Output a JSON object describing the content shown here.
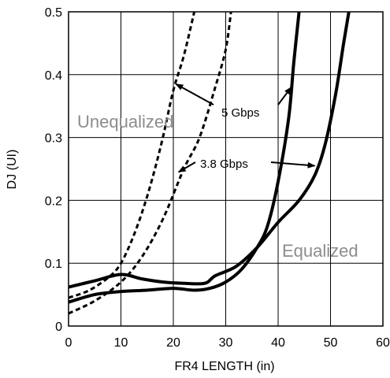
{
  "chart_data": {
    "type": "line",
    "title": "",
    "xlabel": "FR4 LENGTH (in)",
    "ylabel": "DJ (UI)",
    "xlim": [
      0,
      60
    ],
    "ylim": [
      0,
      0.5
    ],
    "x_ticks": [
      "0",
      "10",
      "20",
      "30",
      "40",
      "50",
      "60"
    ],
    "y_ticks": [
      "0",
      "0.1",
      "0.2",
      "0.3",
      "0.4",
      "0.5"
    ],
    "grid": true,
    "series": [
      {
        "group": "Unequalized",
        "rate": "5 Gbps",
        "style": "dashed",
        "points": [
          [
            0,
            0.045
          ],
          [
            4,
            0.057
          ],
          [
            8,
            0.08
          ],
          [
            10,
            0.1
          ],
          [
            12,
            0.135
          ],
          [
            14,
            0.18
          ],
          [
            16,
            0.235
          ],
          [
            18,
            0.3
          ],
          [
            20,
            0.375
          ],
          [
            22,
            0.43
          ],
          [
            24,
            0.5
          ]
        ]
      },
      {
        "group": "Unequalized",
        "rate": "3.8 Gbps",
        "style": "dashed",
        "points": [
          [
            0,
            0.02
          ],
          [
            5,
            0.04
          ],
          [
            10,
            0.07
          ],
          [
            14,
            0.11
          ],
          [
            18,
            0.17
          ],
          [
            22,
            0.25
          ],
          [
            25,
            0.3
          ],
          [
            28,
            0.38
          ],
          [
            30,
            0.44
          ],
          [
            31,
            0.5
          ]
        ]
      },
      {
        "group": "Equalized",
        "rate": "5 Gbps",
        "style": "solid",
        "points": [
          [
            0,
            0.038
          ],
          [
            5,
            0.05
          ],
          [
            10,
            0.055
          ],
          [
            15,
            0.057
          ],
          [
            20,
            0.06
          ],
          [
            24,
            0.057
          ],
          [
            27,
            0.06
          ],
          [
            30,
            0.07
          ],
          [
            33,
            0.09
          ],
          [
            36,
            0.125
          ],
          [
            38,
            0.16
          ],
          [
            40,
            0.23
          ],
          [
            42,
            0.33
          ],
          [
            43,
            0.42
          ],
          [
            44,
            0.5
          ]
        ]
      },
      {
        "group": "Equalized",
        "rate": "3.8 Gbps",
        "style": "solid",
        "points": [
          [
            0,
            0.062
          ],
          [
            5,
            0.072
          ],
          [
            10,
            0.082
          ],
          [
            14,
            0.075
          ],
          [
            18,
            0.07
          ],
          [
            22,
            0.068
          ],
          [
            26,
            0.068
          ],
          [
            28,
            0.08
          ],
          [
            32,
            0.095
          ],
          [
            36,
            0.125
          ],
          [
            40,
            0.165
          ],
          [
            44,
            0.2
          ],
          [
            47,
            0.24
          ],
          [
            49,
            0.29
          ],
          [
            51,
            0.37
          ],
          [
            52.5,
            0.45
          ],
          [
            53.5,
            0.5
          ]
        ]
      }
    ],
    "labels": {
      "unequalized": "Unequalized",
      "equalized": "Equalized",
      "rate_5": "5 Gbps",
      "rate_38": "3.8 Gbps"
    },
    "annotations": [
      {
        "label": "5 Gbps",
        "arrows_to": [
          [
            20.5,
            0.385
          ],
          [
            42.5,
            0.38
          ]
        ]
      },
      {
        "label": "3.8 Gbps",
        "arrows_to": [
          [
            21,
            0.245
          ],
          [
            47,
            0.255
          ]
        ]
      }
    ],
    "line_color": "#000000",
    "group_label_color": "#8c8c8c"
  }
}
